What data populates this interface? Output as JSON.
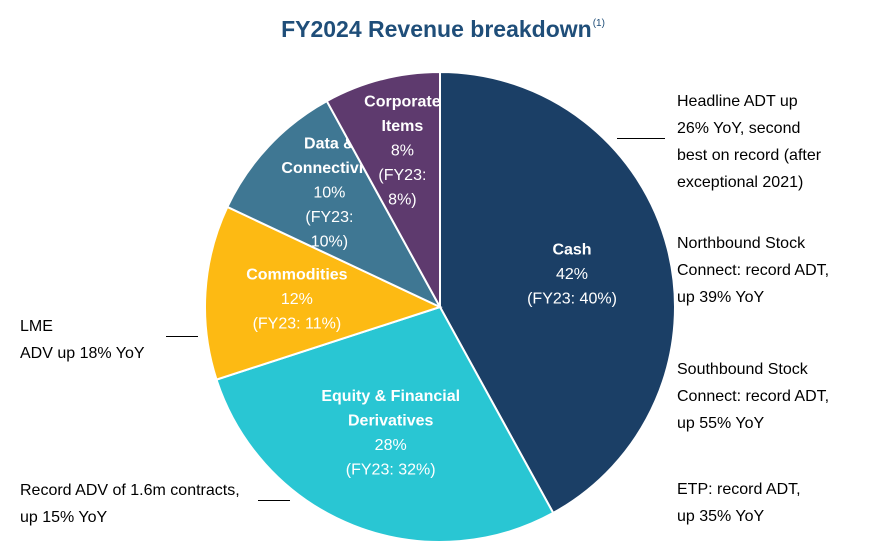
{
  "title": "FY2024 Revenue breakdown",
  "title_footnote": "(1)",
  "chart_data": {
    "type": "pie",
    "title": "FY2024 Revenue breakdown",
    "start_angle_deg": 0,
    "direction": "clockwise",
    "slices": [
      {
        "label_lines": [
          "Cash"
        ],
        "value": 42,
        "value_label": "42%",
        "prior_lines": [
          "(FY23: 40%)"
        ],
        "color": "#1b3f66"
      },
      {
        "label_lines": [
          "Equity & Financial",
          "Derivatives"
        ],
        "value": 28,
        "value_label": "28%",
        "prior_lines": [
          "(FY23: 32%)"
        ],
        "color": "#29c6d3"
      },
      {
        "label_lines": [
          "Commodities"
        ],
        "value": 12,
        "value_label": "12%",
        "prior_lines": [
          "(FY23: 11%)"
        ],
        "color": "#fdba13"
      },
      {
        "label_lines": [
          "Data &",
          "Connectivity"
        ],
        "value": 10,
        "value_label": "10%",
        "prior_lines": [
          "(FY23:",
          "10%)"
        ],
        "color": "#3f7793"
      },
      {
        "label_lines": [
          "Corporate",
          "Items"
        ],
        "value": 8,
        "value_label": "8%",
        "prior_lines": [
          "(FY23:",
          "8%)"
        ],
        "color": "#5e3a6e"
      }
    ]
  },
  "annotations": {
    "cash_headline": [
      "Headline ADT up",
      "26% YoY, second",
      "best on record (after",
      "exceptional 2021)"
    ],
    "northbound": [
      "Northbound Stock",
      "Connect: record ADT,",
      "up 39% YoY"
    ],
    "southbound": [
      "Southbound Stock",
      "Connect: record ADT,",
      "up 55% YoY"
    ],
    "etp": [
      "ETP: record ADT,",
      "up 35% YoY"
    ],
    "lme": [
      "LME",
      "ADV up 18% YoY"
    ],
    "equity_derivatives": [
      "Record ADV of 1.6m contracts,",
      "up 15% YoY"
    ]
  }
}
